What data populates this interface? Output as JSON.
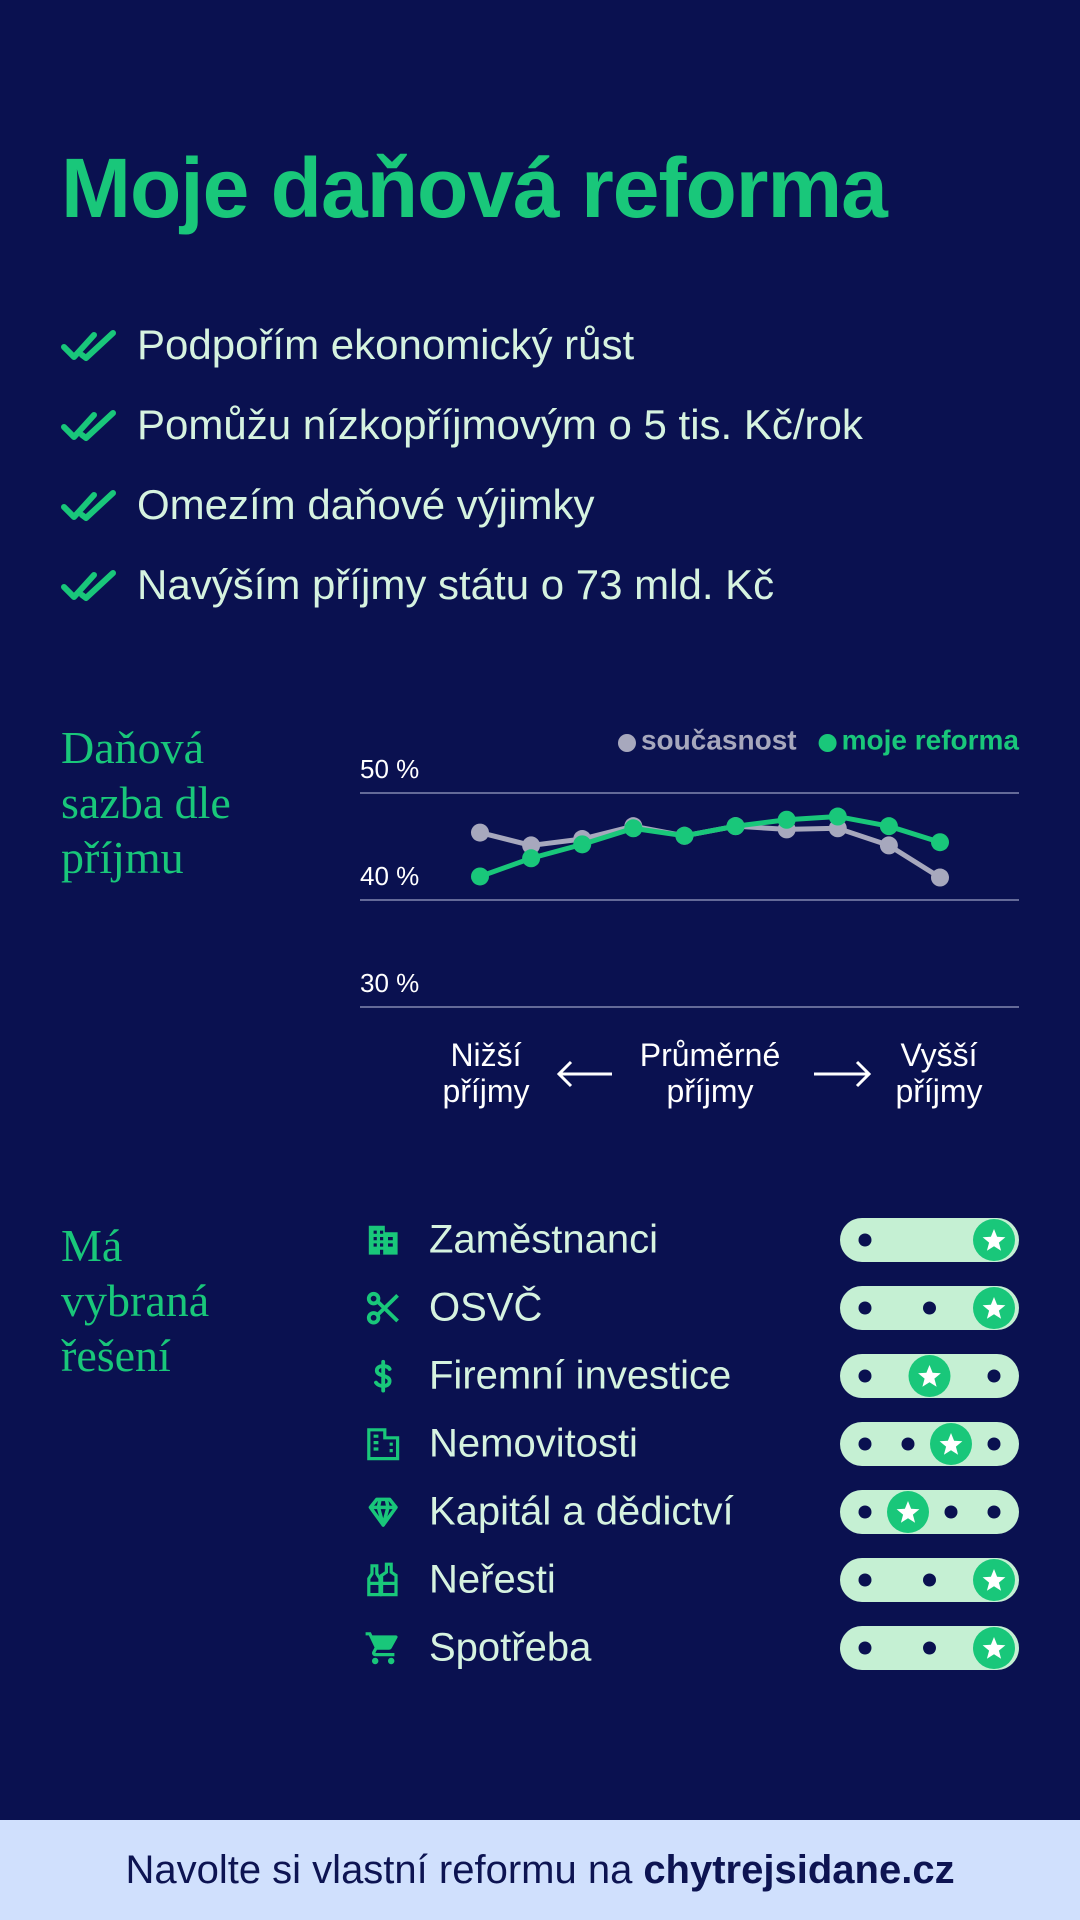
{
  "header": {
    "title": "Moje daňová reforma",
    "bullets": [
      "Podpořím ekonomický růst",
      "Pomůžu nízkopříjmovým o 5 tis. Kč/rok",
      "Omezím daňové výjimky",
      "Navýším příjmy státu o 73 mld. Kč"
    ]
  },
  "chart_data": {
    "type": "line",
    "title": "Daňová sazba dle příjmu",
    "categories": [
      null,
      null,
      null,
      null,
      null,
      null,
      null,
      null,
      null,
      null
    ],
    "series": [
      {
        "name": "současnost",
        "color": "#a7a8bd",
        "values": [
          46.3,
          45.1,
          45.7,
          46.9,
          46.0,
          46.9,
          46.6,
          46.7,
          45.1,
          42.1
        ]
      },
      {
        "name": "moje reforma",
        "color": "#19c77a",
        "values": [
          42.2,
          43.9,
          45.2,
          46.7,
          46.0,
          46.9,
          47.5,
          47.8,
          46.9,
          45.4
        ]
      }
    ],
    "ylim": [
      30,
      50
    ],
    "yticks": [
      {
        "value": 30,
        "label": "30 %"
      },
      {
        "value": 40,
        "label": "40 %"
      },
      {
        "value": 50,
        "label": "50 %"
      }
    ],
    "grid": true,
    "legend": "top-right",
    "x_annotations": [
      "Nižší příjmy",
      "Průměrné příjmy",
      "Vyšší příjmy"
    ]
  },
  "ratings": {
    "title": "Má vybraná řešení",
    "items": [
      {
        "label": "Zaměstnanci",
        "options": 2,
        "selected": 2
      },
      {
        "label": "OSVČ",
        "options": 3,
        "selected": 3
      },
      {
        "label": "Firemní investice",
        "options": 3,
        "selected": 2
      },
      {
        "label": "Nemovitosti",
        "options": 4,
        "selected": 3
      },
      {
        "label": "Kapitál a dědictví",
        "options": 4,
        "selected": 2
      },
      {
        "label": "Neřesti",
        "options": 3,
        "selected": 3
      },
      {
        "label": "Spotřeba",
        "options": 3,
        "selected": 3
      }
    ]
  },
  "footer": {
    "text": "Navolte si vlastní reformu na",
    "link": "chytrejsidane.cz"
  }
}
